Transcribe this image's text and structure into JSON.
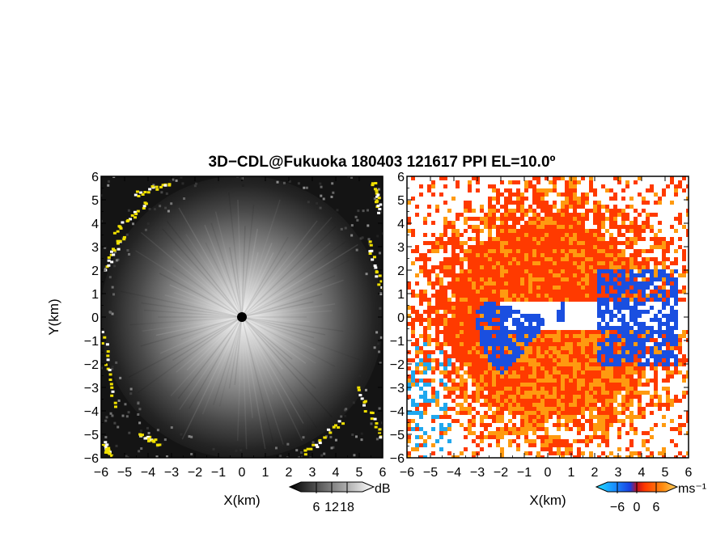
{
  "figure": {
    "title": "3D−CDL@Fukuoka 180403 121617 PPI EL=10.0º"
  },
  "chart_data": [
    {
      "type": "heatmap",
      "panel": "reflectivity",
      "xlabel": "X(km)",
      "ylabel": "Y(km)",
      "xlim": [
        -6,
        6
      ],
      "ylim": [
        -6,
        6
      ],
      "x_ticks": [
        "−6",
        "−5",
        "−4",
        "−3",
        "−2",
        "−1",
        "0",
        "1",
        "2",
        "3",
        "4",
        "5",
        "6"
      ],
      "y_ticks": [
        "6",
        "5",
        "4",
        "3",
        "2",
        "1",
        "0",
        "−1",
        "−2",
        "−3",
        "−4",
        "−5",
        "−6"
      ],
      "colormap": "grayscale with yellow saturation",
      "colorbar": {
        "unit": "dB",
        "ticks": [
          "6",
          "12",
          "18"
        ],
        "range": [
          0,
          24
        ]
      },
      "colors": {
        "low": "#000000",
        "high": "#ffffff",
        "over": "#f0e000"
      },
      "radar_center": [
        0,
        0
      ]
    },
    {
      "type": "heatmap",
      "panel": "doppler velocity",
      "xlabel": "X(km)",
      "ylabel": "",
      "xlim": [
        -6,
        6
      ],
      "ylim": [
        -6,
        6
      ],
      "x_ticks": [
        "−6",
        "−5",
        "−4",
        "−3",
        "−2",
        "−1",
        "0",
        "1",
        "2",
        "3",
        "4",
        "5",
        "6"
      ],
      "y_ticks": [
        "6",
        "5",
        "4",
        "3",
        "2",
        "1",
        "0",
        "−1",
        "−2",
        "−3",
        "−4",
        "−5",
        "−6"
      ],
      "colormap": "diverging blue-red-orange",
      "colorbar": {
        "unit": "ms⁻¹",
        "ticks": [
          "−6",
          "0",
          "6"
        ],
        "range": [
          -9,
          9
        ]
      },
      "colors": {
        "negative": "#1a4fe0",
        "near_zero": "#ff3a00",
        "positive": "#ff9a10",
        "light_negative": "#20a8ee"
      },
      "radar_center": [
        0,
        0
      ]
    }
  ]
}
